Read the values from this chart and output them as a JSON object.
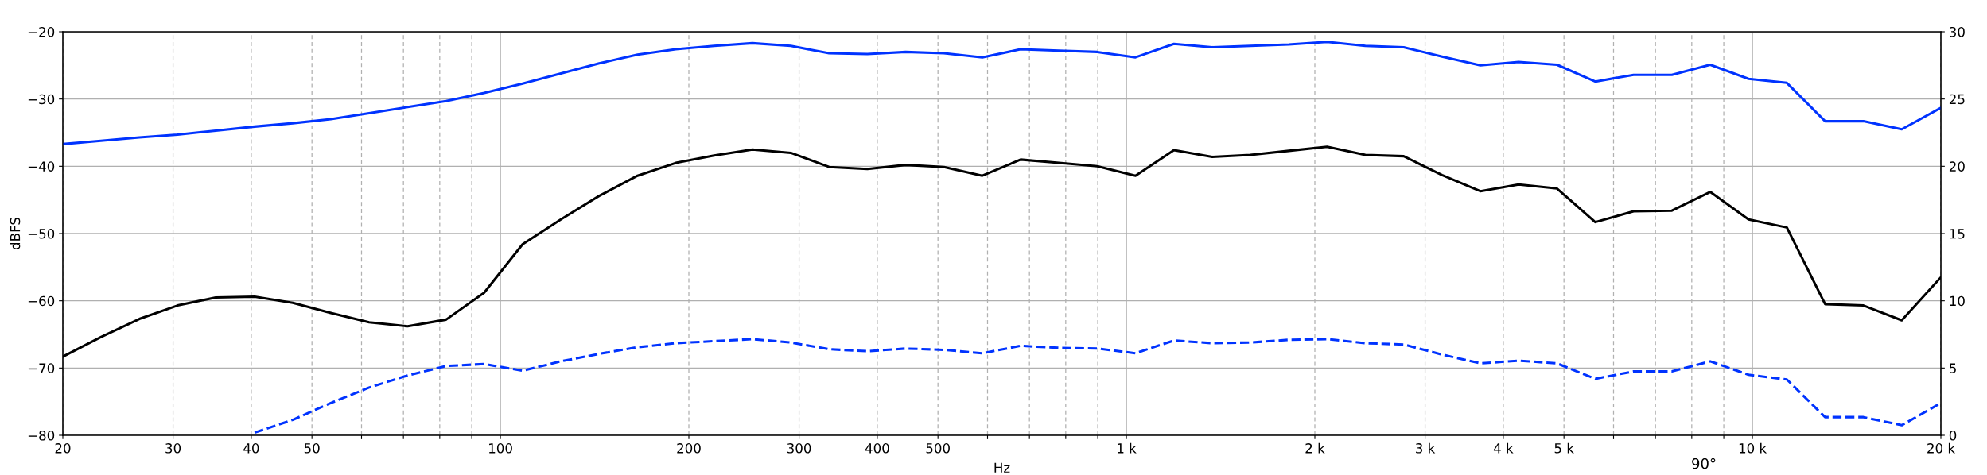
{
  "chart_data": {
    "type": "line",
    "xlabel": "Hz",
    "ylabel": "dBFS",
    "log": "x",
    "grid": true,
    "marker": "none",
    "x": [
      20,
      23.0,
      26.5,
      30.5,
      35.1,
      40.5,
      46.6,
      53.6,
      61.7,
      71.1,
      81.9,
      94.2,
      108.5,
      124.9,
      143.8,
      165.6,
      190.6,
      219.5,
      252.7,
      291.0,
      335.0,
      385.7,
      444.0,
      511.2,
      588.6,
      677.6,
      780.2,
      898.3,
      1034,
      1191,
      1371,
      1578,
      1817,
      2092,
      2408,
      2773,
      3193,
      3676,
      4232,
      4873,
      5610,
      6459,
      7436,
      8562,
      9858,
      11350,
      13066,
      15044,
      17320,
      20000
    ],
    "series": [
      {
        "color": "#0033ff",
        "line_style": "solid",
        "values": [
          -36.7,
          -36.2,
          -35.7,
          -35.3,
          -34.7,
          -34.1,
          -33.6,
          -33.0,
          -32.1,
          -31.2,
          -30.3,
          -29.1,
          -27.7,
          -26.2,
          -24.7,
          -23.4,
          -22.6,
          -22.1,
          -21.7,
          -22.1,
          -23.2,
          -23.3,
          -23.0,
          -23.2,
          -23.8,
          -22.6,
          -22.8,
          -23.0,
          -23.8,
          -21.8,
          -22.3,
          -22.1,
          -21.9,
          -21.5,
          -22.1,
          -22.3,
          -23.7,
          -25.0,
          -24.5,
          -24.9,
          -27.4,
          -26.4,
          -26.4,
          -24.9,
          -27.0,
          -27.6,
          -33.3,
          -33.3,
          -34.5,
          -31.3
        ]
      },
      {
        "color": "#000000",
        "line_style": "solid",
        "values": [
          -68.3,
          -65.4,
          -62.7,
          -60.7,
          -59.5,
          -59.4,
          -60.3,
          -61.8,
          -63.2,
          -63.8,
          -62.8,
          -58.8,
          -51.6,
          -47.9,
          -44.4,
          -41.4,
          -39.5,
          -38.4,
          -37.5,
          -38.0,
          -40.1,
          -40.4,
          -39.8,
          -40.1,
          -41.4,
          -39.0,
          -39.5,
          -40.0,
          -41.4,
          -37.6,
          -38.6,
          -38.3,
          -37.7,
          -37.1,
          -38.3,
          -38.5,
          -41.3,
          -43.7,
          -42.7,
          -43.3,
          -48.3,
          -46.7,
          -46.6,
          -43.8,
          -47.9,
          -49.1,
          -60.5,
          -60.7,
          -62.9,
          -56.5
        ]
      },
      {
        "color": "#0033ff",
        "line_style": "dashed",
        "values": [
          null,
          null,
          null,
          null,
          null,
          -79.6,
          -77.7,
          -75.2,
          -72.9,
          -71.1,
          -69.7,
          -69.4,
          -70.4,
          -69.0,
          -67.9,
          -66.9,
          -66.3,
          -66.0,
          -65.7,
          -66.2,
          -67.2,
          -67.5,
          -67.1,
          -67.3,
          -67.8,
          -66.7,
          -67.0,
          -67.1,
          -67.8,
          -65.9,
          -66.3,
          -66.2,
          -65.8,
          -65.7,
          -66.3,
          -66.5,
          -68.0,
          -69.3,
          -68.9,
          -69.3,
          -71.6,
          -70.5,
          -70.5,
          -69.0,
          -71.0,
          -71.7,
          -77.3,
          -77.3,
          -78.5,
          -75.2
        ]
      }
    ],
    "xlim": [
      20,
      20000
    ],
    "xticks": [
      20,
      30,
      40,
      50,
      {
        "value": 60,
        "label": null
      },
      {
        "value": 70,
        "label": null
      },
      {
        "value": 80,
        "label": null
      },
      {
        "value": 90,
        "label": null
      },
      100,
      200,
      300,
      400,
      500,
      {
        "value": 600,
        "label": null
      },
      {
        "value": 700,
        "label": null
      },
      {
        "value": 800,
        "label": null
      },
      {
        "value": 900,
        "label": null
      },
      {
        "value": 1000,
        "label": "1 k"
      },
      {
        "value": 2000,
        "label": "2 k"
      },
      {
        "value": 3000,
        "label": "3 k"
      },
      {
        "value": 4000,
        "label": "4 k"
      },
      {
        "value": 5000,
        "label": "5 k"
      },
      {
        "value": 6000,
        "label": null
      },
      {
        "value": 7000,
        "label": null
      },
      {
        "value": 8000,
        "label": null
      },
      {
        "value": 9000,
        "label": null
      },
      {
        "value": 10000,
        "label": "10 k"
      },
      {
        "value": 20000,
        "label": "20 k"
      }
    ],
    "ylim": [
      -80,
      -20
    ],
    "yticks": [
      {
        "value": -80,
        "label": "−80"
      },
      {
        "value": -70,
        "label": "−70"
      },
      {
        "value": -60,
        "label": "−60"
      },
      {
        "value": -50,
        "label": "−50"
      },
      {
        "value": -40,
        "label": "−40"
      },
      {
        "value": -30,
        "label": "−30"
      },
      {
        "value": -20,
        "label": "−20"
      }
    ],
    "y2lim": [
      0,
      30
    ],
    "y2ticks": [
      0,
      5,
      10,
      15,
      20,
      25,
      30
    ],
    "annotations": [
      "90°"
    ]
  }
}
